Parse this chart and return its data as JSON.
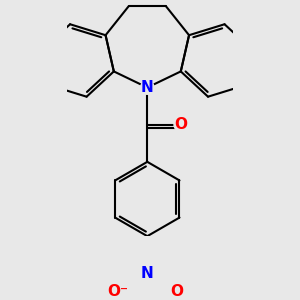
{
  "bg_color": "#e8e8e8",
  "bond_color": "#000000",
  "N_color": "#0000ff",
  "O_color": "#ff0000",
  "bond_width": 1.5,
  "font_size_atom": 10,
  "xlim": [
    -3.0,
    3.2
  ],
  "ylim": [
    -5.5,
    3.2
  ]
}
